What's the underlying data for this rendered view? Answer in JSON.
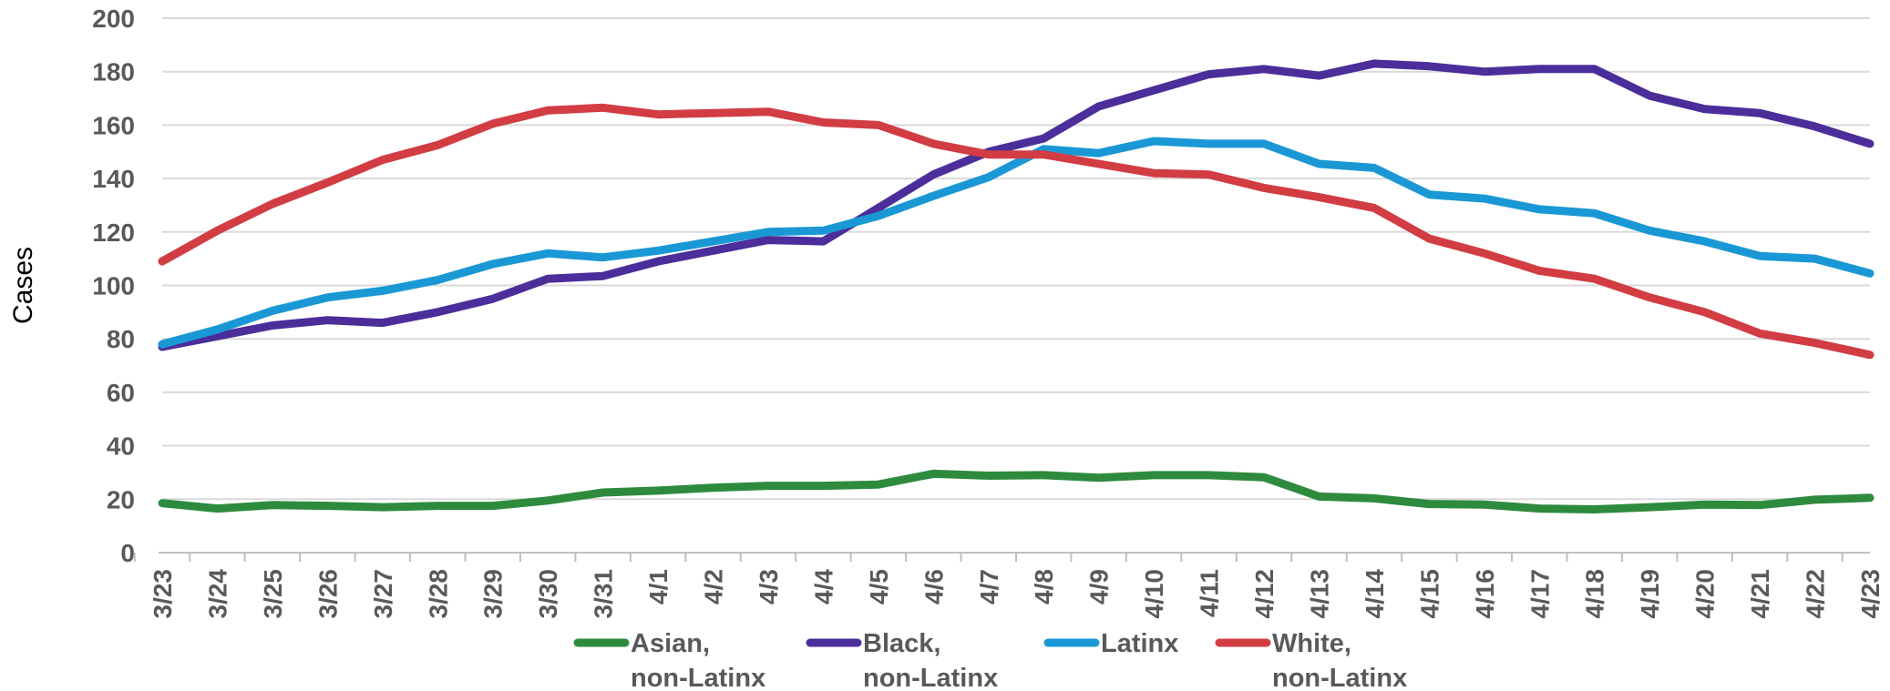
{
  "chart_data": {
    "type": "line",
    "title": "",
    "xlabel": "",
    "ylabel": "Cases",
    "ylim": [
      0,
      200
    ],
    "yticks": [
      0,
      20,
      40,
      60,
      80,
      100,
      120,
      140,
      160,
      180,
      200
    ],
    "grid": true,
    "legend_position": "bottom",
    "categories": [
      "3/23",
      "3/24",
      "3/25",
      "3/26",
      "3/27",
      "3/28",
      "3/29",
      "3/30",
      "3/31",
      "4/1",
      "4/2",
      "4/3",
      "4/4",
      "4/5",
      "4/6",
      "4/7",
      "4/8",
      "4/9",
      "4/10",
      "4/11",
      "4/12",
      "4/13",
      "4/14",
      "4/15",
      "4/16",
      "4/17",
      "4/18",
      "4/19",
      "4/20",
      "4/21",
      "4/22",
      "4/23"
    ],
    "series": [
      {
        "name": "Asian, non-Latinx",
        "legend_lines": [
          "Asian,",
          "non-Latinx"
        ],
        "color": "#2e8b3e",
        "values": [
          18.5,
          16.5,
          17.8,
          17.5,
          17,
          17.5,
          17.5,
          19.5,
          22.5,
          23.2,
          24.3,
          25,
          25,
          25.5,
          29.5,
          28.8,
          29,
          28,
          29,
          29,
          28.2,
          21,
          20.3,
          18.2,
          18,
          16.5,
          16.2,
          17,
          18,
          17.8,
          19.8,
          20.5
        ]
      },
      {
        "name": "Black, non-Latinx",
        "legend_lines": [
          "Black,",
          "non-Latinx"
        ],
        "color": "#4b2e9a",
        "values": [
          77,
          81,
          85,
          87,
          86,
          90,
          95,
          102.5,
          103.5,
          109,
          113,
          117,
          116.5,
          129,
          141.5,
          150,
          155,
          167,
          173,
          179,
          181,
          178.5,
          183,
          182,
          180,
          181,
          181,
          171,
          166,
          164.5,
          159.5,
          153
        ]
      },
      {
        "name": "Latinx",
        "legend_lines": [
          "Latinx"
        ],
        "color": "#1a98d5",
        "values": [
          78,
          83.5,
          90.5,
          95.5,
          98,
          102,
          108,
          112,
          110.5,
          113,
          116.5,
          120,
          120.5,
          126,
          133.5,
          140.5,
          151,
          149.5,
          154,
          153,
          153,
          145.5,
          144,
          134,
          132.5,
          128.5,
          127,
          120.5,
          116.5,
          111,
          110,
          104.5
        ]
      },
      {
        "name": "White, non-Latinx",
        "legend_lines": [
          "White,",
          "non-Latinx"
        ],
        "color": "#d23c43",
        "values": [
          109,
          120.5,
          130.5,
          138.5,
          147,
          152.5,
          160.5,
          165.5,
          166.5,
          164,
          164.5,
          165,
          161,
          160,
          153,
          149,
          149,
          145.5,
          142,
          141.5,
          136.5,
          133,
          129,
          117.5,
          112,
          105.5,
          102.5,
          95.5,
          90,
          82,
          78.5,
          74
        ]
      }
    ]
  }
}
